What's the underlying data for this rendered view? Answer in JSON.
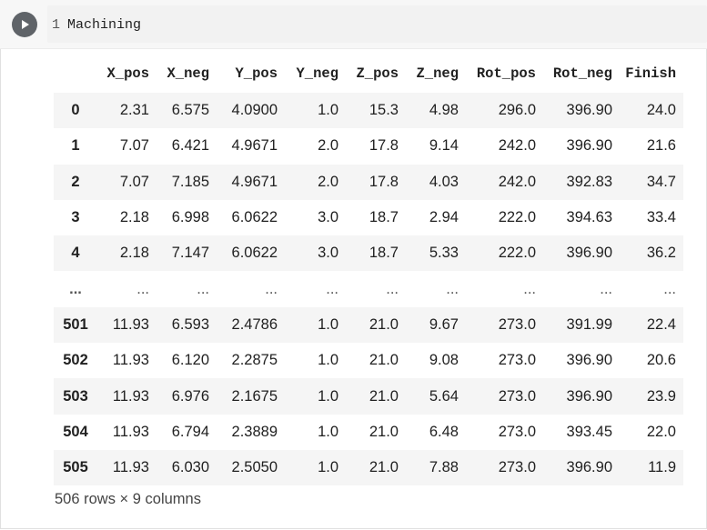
{
  "code_cell": {
    "line_number": "1",
    "code": "Machining"
  },
  "dataframe": {
    "columns": [
      "X_pos",
      "X_neg",
      "Y_pos",
      "Y_neg",
      "Z_pos",
      "Z_neg",
      "Rot_pos",
      "Rot_neg",
      "Finish"
    ],
    "rows": [
      {
        "index": "0",
        "values": [
          "2.31",
          "6.575",
          "4.0900",
          "1.0",
          "15.3",
          "4.98",
          "296.0",
          "396.90",
          "24.0"
        ]
      },
      {
        "index": "1",
        "values": [
          "7.07",
          "6.421",
          "4.9671",
          "2.0",
          "17.8",
          "9.14",
          "242.0",
          "396.90",
          "21.6"
        ]
      },
      {
        "index": "2",
        "values": [
          "7.07",
          "7.185",
          "4.9671",
          "2.0",
          "17.8",
          "4.03",
          "242.0",
          "392.83",
          "34.7"
        ]
      },
      {
        "index": "3",
        "values": [
          "2.18",
          "6.998",
          "6.0622",
          "3.0",
          "18.7",
          "2.94",
          "222.0",
          "394.63",
          "33.4"
        ]
      },
      {
        "index": "4",
        "values": [
          "2.18",
          "7.147",
          "6.0622",
          "3.0",
          "18.7",
          "5.33",
          "222.0",
          "396.90",
          "36.2"
        ]
      },
      {
        "index": "...",
        "values": [
          "...",
          "...",
          "...",
          "...",
          "...",
          "...",
          "...",
          "...",
          "..."
        ]
      },
      {
        "index": "501",
        "values": [
          "11.93",
          "6.593",
          "2.4786",
          "1.0",
          "21.0",
          "9.67",
          "273.0",
          "391.99",
          "22.4"
        ]
      },
      {
        "index": "502",
        "values": [
          "11.93",
          "6.120",
          "2.2875",
          "1.0",
          "21.0",
          "9.08",
          "273.0",
          "396.90",
          "20.6"
        ]
      },
      {
        "index": "503",
        "values": [
          "11.93",
          "6.976",
          "2.1675",
          "1.0",
          "21.0",
          "5.64",
          "273.0",
          "396.90",
          "23.9"
        ]
      },
      {
        "index": "504",
        "values": [
          "11.93",
          "6.794",
          "2.3889",
          "1.0",
          "21.0",
          "6.48",
          "273.0",
          "393.45",
          "22.0"
        ]
      },
      {
        "index": "505",
        "values": [
          "11.93",
          "6.030",
          "2.5050",
          "1.0",
          "21.0",
          "7.88",
          "273.0",
          "396.90",
          "11.9"
        ]
      }
    ],
    "shape_text": "506 rows × 9 columns"
  },
  "icons": {
    "run": "play-icon"
  }
}
